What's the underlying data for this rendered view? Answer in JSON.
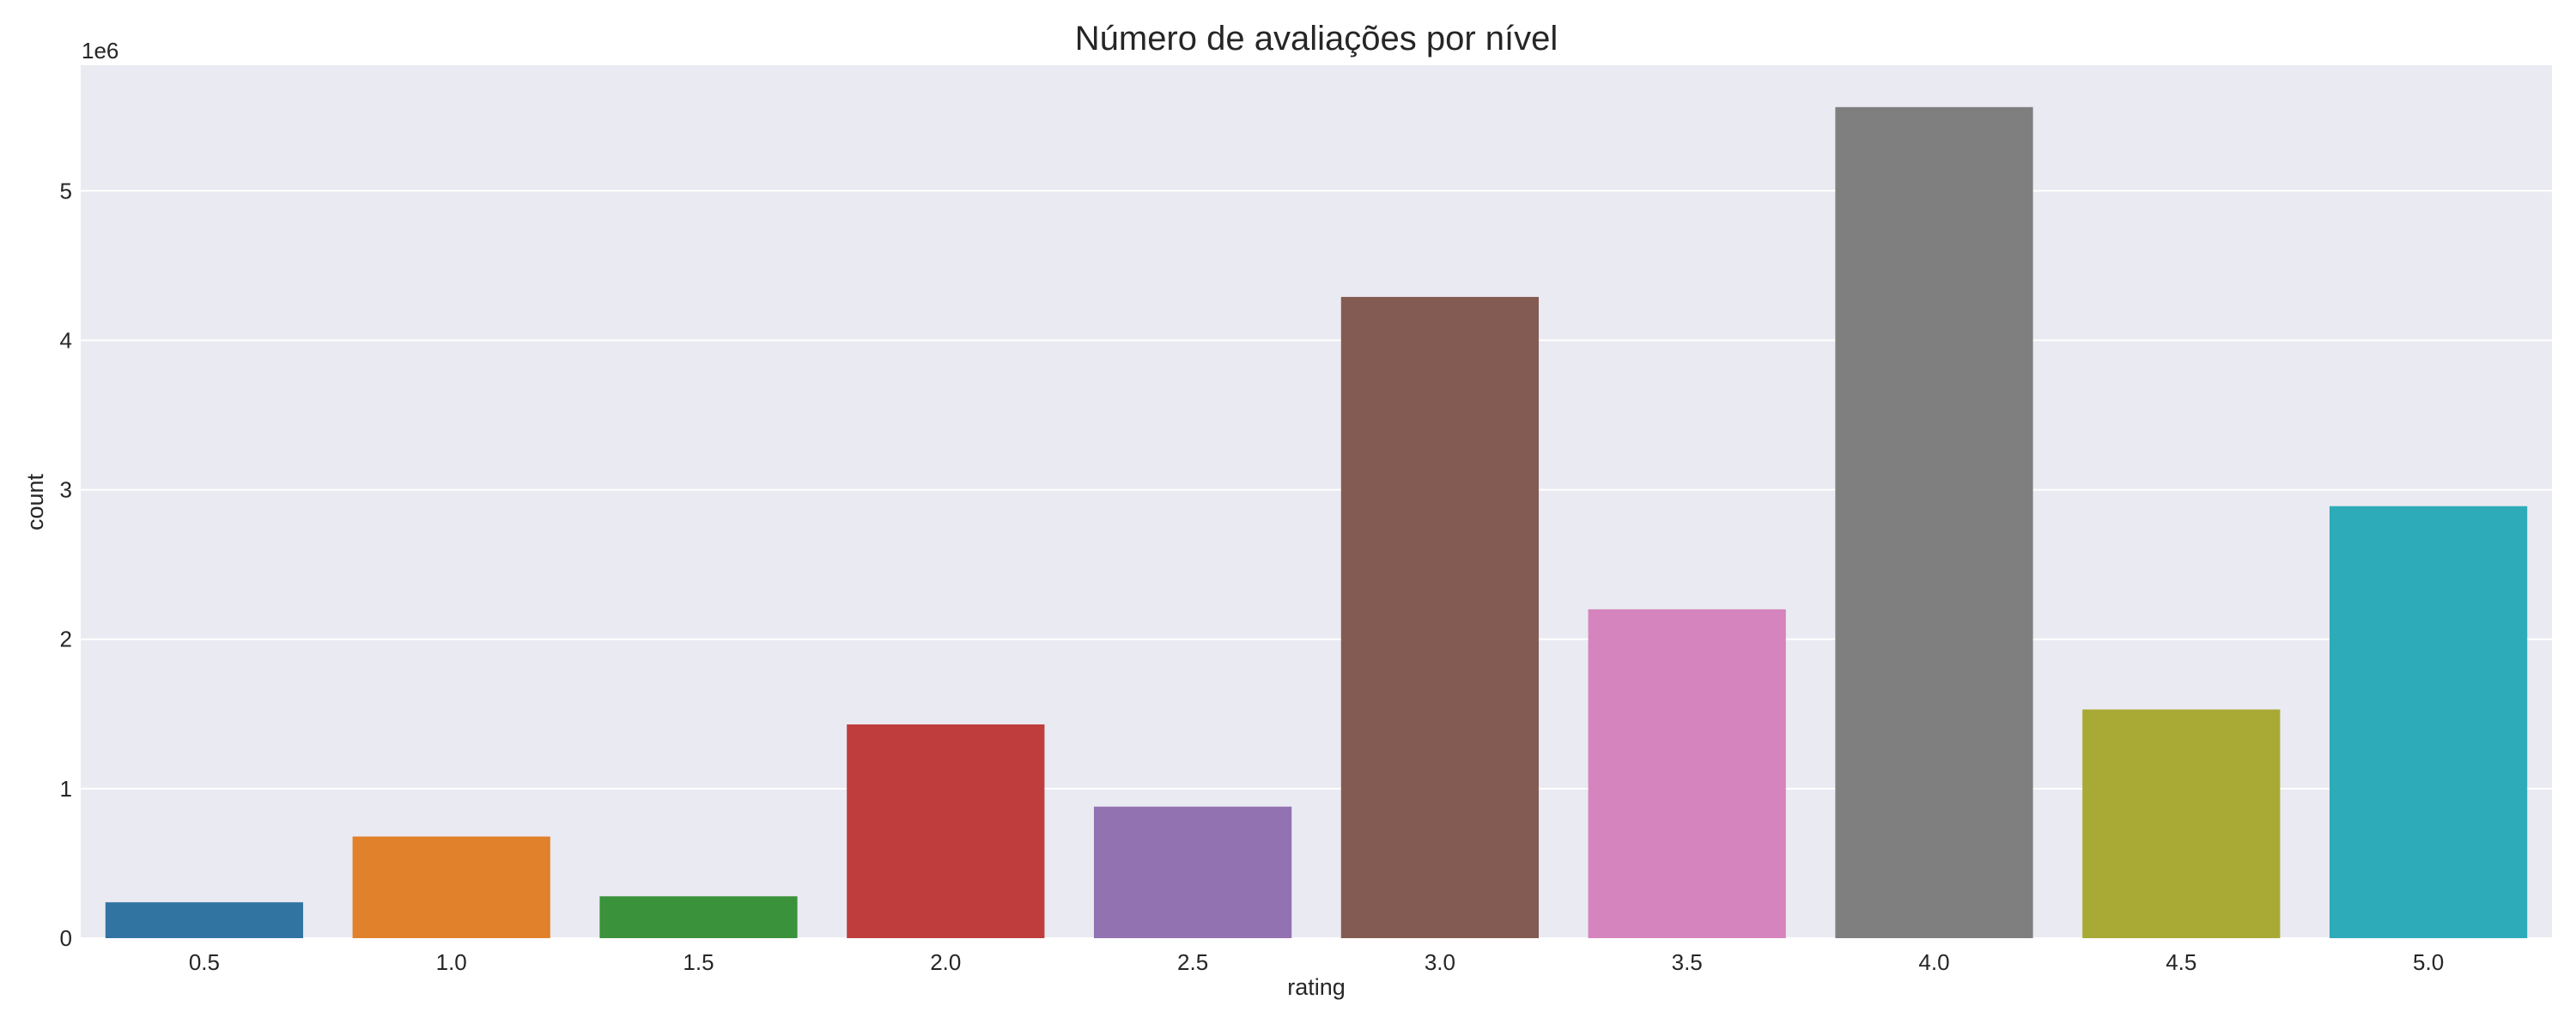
{
  "chart_data": {
    "type": "bar",
    "title": "Número de avaliações por nível",
    "xlabel": "rating",
    "ylabel": "count",
    "y_offset_label": "1e6",
    "categories": [
      "0.5",
      "1.0",
      "1.5",
      "2.0",
      "2.5",
      "3.0",
      "3.5",
      "4.0",
      "4.5",
      "5.0"
    ],
    "values": [
      0.24,
      0.68,
      0.28,
      1.43,
      0.88,
      4.29,
      2.2,
      5.56,
      1.53,
      2.89
    ],
    "colors": [
      "#3274a1",
      "#e1812c",
      "#3a923a",
      "#c03d3e",
      "#9372b2",
      "#845b53",
      "#d684bd",
      "#7f7f7f",
      "#a9aa35",
      "#2eabb8"
    ],
    "yticks": [
      "0",
      "1",
      "2",
      "3",
      "4",
      "5"
    ],
    "ylim": [
      0,
      5.84
    ],
    "grid": true,
    "background": "#eaeaf2"
  }
}
